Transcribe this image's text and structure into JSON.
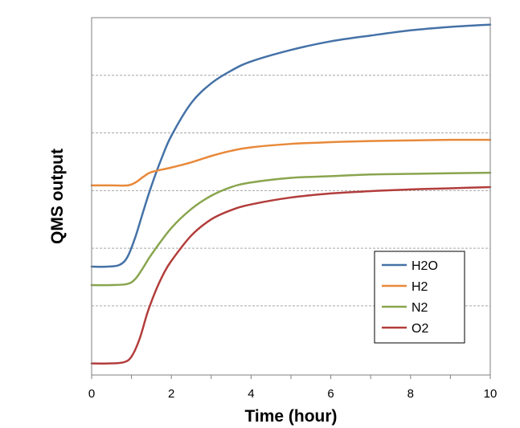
{
  "chart_data": {
    "type": "line",
    "title": "",
    "xlabel": "Time (hour)",
    "ylabel": "QMS output",
    "xlim": [
      0,
      10
    ],
    "ylim": [
      0,
      6
    ],
    "x_ticks": [
      0,
      2,
      4,
      6,
      8,
      10
    ],
    "x_tick_labels": [
      "0",
      "2",
      "4",
      "6",
      "8",
      "10"
    ],
    "y_gridlines": [
      1,
      2,
      3,
      4,
      5
    ],
    "y_tick_labels_shown": false,
    "grid": "horizontal dashed",
    "legend_position": "bottom-right",
    "series": [
      {
        "name": "H2O",
        "color": "#4572a7",
        "points": [
          [
            0,
            1.68
          ],
          [
            0.4,
            1.68
          ],
          [
            0.7,
            1.71
          ],
          [
            0.9,
            1.85
          ],
          [
            1.1,
            2.2
          ],
          [
            1.3,
            2.65
          ],
          [
            1.5,
            3.08
          ],
          [
            1.75,
            3.55
          ],
          [
            2.0,
            3.95
          ],
          [
            2.5,
            4.52
          ],
          [
            3.0,
            4.86
          ],
          [
            3.5,
            5.08
          ],
          [
            4.0,
            5.24
          ],
          [
            5.0,
            5.44
          ],
          [
            6.0,
            5.59
          ],
          [
            7.0,
            5.69
          ],
          [
            8.0,
            5.78
          ],
          [
            9.0,
            5.84
          ],
          [
            10.0,
            5.88
          ]
        ]
      },
      {
        "name": "H2",
        "color": "#e8893a",
        "points": [
          [
            0,
            3.09
          ],
          [
            0.5,
            3.09
          ],
          [
            0.9,
            3.09
          ],
          [
            1.1,
            3.14
          ],
          [
            1.3,
            3.24
          ],
          [
            1.5,
            3.32
          ],
          [
            2.0,
            3.4
          ],
          [
            2.5,
            3.49
          ],
          [
            3.0,
            3.6
          ],
          [
            3.5,
            3.69
          ],
          [
            4.0,
            3.75
          ],
          [
            5.0,
            3.81
          ],
          [
            6.0,
            3.84
          ],
          [
            7.0,
            3.86
          ],
          [
            8.0,
            3.87
          ],
          [
            9.0,
            3.88
          ],
          [
            10.0,
            3.88
          ]
        ]
      },
      {
        "name": "N2",
        "color": "#89a54e",
        "points": [
          [
            0,
            1.36
          ],
          [
            0.5,
            1.36
          ],
          [
            0.9,
            1.38
          ],
          [
            1.1,
            1.47
          ],
          [
            1.3,
            1.67
          ],
          [
            1.5,
            1.89
          ],
          [
            2.0,
            2.35
          ],
          [
            2.5,
            2.68
          ],
          [
            3.0,
            2.91
          ],
          [
            3.5,
            3.06
          ],
          [
            4.0,
            3.14
          ],
          [
            5.0,
            3.22
          ],
          [
            6.0,
            3.25
          ],
          [
            7.0,
            3.28
          ],
          [
            8.0,
            3.29
          ],
          [
            9.0,
            3.3
          ],
          [
            10.0,
            3.31
          ]
        ]
      },
      {
        "name": "O2",
        "color": "#b23d3b",
        "points": [
          [
            0,
            0.0
          ],
          [
            0.4,
            0.0
          ],
          [
            0.8,
            0.02
          ],
          [
            1.0,
            0.12
          ],
          [
            1.2,
            0.42
          ],
          [
            1.4,
            0.88
          ],
          [
            1.6,
            1.25
          ],
          [
            1.8,
            1.55
          ],
          [
            2.0,
            1.78
          ],
          [
            2.5,
            2.22
          ],
          [
            3.0,
            2.5
          ],
          [
            3.5,
            2.66
          ],
          [
            4.0,
            2.76
          ],
          [
            5.0,
            2.88
          ],
          [
            6.0,
            2.95
          ],
          [
            7.0,
            2.99
          ],
          [
            8.0,
            3.02
          ],
          [
            9.0,
            3.04
          ],
          [
            10.0,
            3.06
          ]
        ]
      }
    ]
  }
}
